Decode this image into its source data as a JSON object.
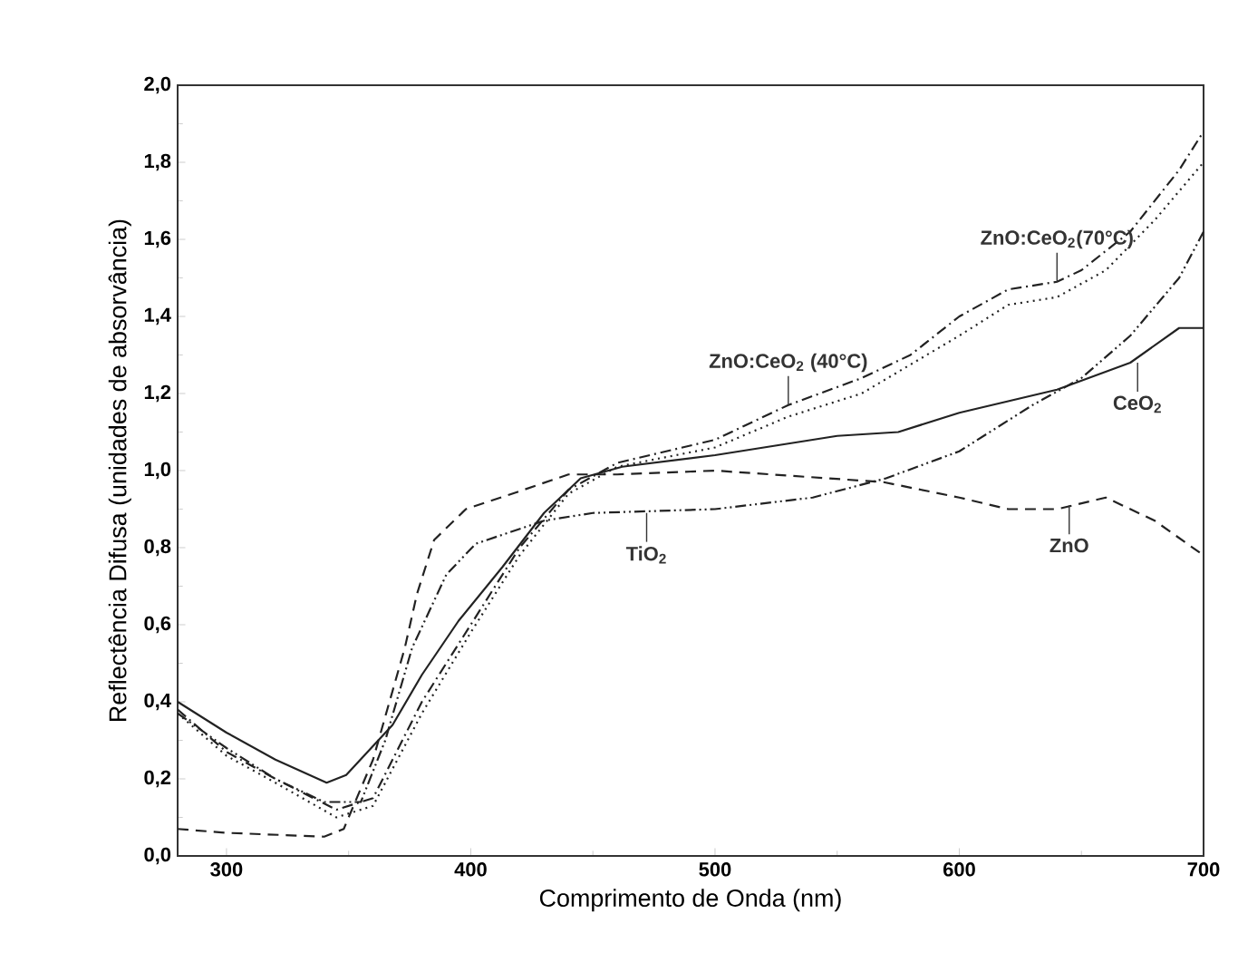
{
  "chart_data": {
    "type": "line",
    "xlabel": "Comprimento de Onda (nm)",
    "ylabel": "Reflectência Difusa (unidades de absorvância)",
    "xlim": [
      280,
      700
    ],
    "ylim": [
      0,
      2
    ],
    "xticks": [
      300,
      400,
      500,
      600,
      700
    ],
    "yticks": [
      {
        "value": 0,
        "label": "0,0"
      },
      {
        "value": 0.2,
        "label": "0,2"
      },
      {
        "value": 0.4,
        "label": "0,4"
      },
      {
        "value": 0.6,
        "label": "0,6"
      },
      {
        "value": 0.8,
        "label": "0,8"
      },
      {
        "value": 1.0,
        "label": "1,0"
      },
      {
        "value": 1.2,
        "label": "1,2"
      },
      {
        "value": 1.4,
        "label": "1,4"
      },
      {
        "value": 1.6,
        "label": "1,6"
      },
      {
        "value": 1.8,
        "label": "1,8"
      },
      {
        "value": 2.0,
        "label": "2,0"
      }
    ],
    "grid": false,
    "marker": "none",
    "series": [
      {
        "color": "#222222",
        "line_style": "solid",
        "x": [
          280,
          300,
          320,
          341,
          349,
          368,
          380,
          395,
          413,
          430,
          445,
          462,
          500,
          550,
          575,
          600,
          640,
          670,
          690,
          700
        ],
        "values": [
          0.4,
          0.32,
          0.25,
          0.19,
          0.21,
          0.34,
          0.47,
          0.61,
          0.75,
          0.89,
          0.98,
          1.01,
          1.04,
          1.09,
          1.1,
          1.15,
          1.21,
          1.28,
          1.37,
          1.37
        ]
      },
      {
        "color": "#222222",
        "line_style": "dashed",
        "x": [
          280,
          300,
          340,
          348,
          360,
          373,
          378,
          385,
          398,
          417,
          440,
          460,
          500,
          569,
          600,
          620,
          640,
          660,
          680,
          700
        ],
        "values": [
          0.07,
          0.06,
          0.05,
          0.07,
          0.25,
          0.54,
          0.68,
          0.82,
          0.9,
          0.94,
          0.99,
          0.99,
          1.0,
          0.97,
          0.93,
          0.9,
          0.9,
          0.93,
          0.87,
          0.78
        ]
      },
      {
        "color": "#222222",
        "line_style": "dashdotdotted",
        "x": [
          280,
          300,
          320,
          340,
          355,
          365,
          376,
          390,
          402,
          430,
          450,
          500,
          540,
          570,
          600,
          630,
          650,
          670,
          690,
          700
        ],
        "values": [
          0.37,
          0.28,
          0.2,
          0.14,
          0.14,
          0.3,
          0.54,
          0.73,
          0.81,
          0.87,
          0.89,
          0.9,
          0.93,
          0.98,
          1.05,
          1.17,
          1.24,
          1.35,
          1.5,
          1.62
        ]
      },
      {
        "color": "#222222",
        "line_style": "dashdotted",
        "x": [
          280,
          300,
          320,
          345,
          360,
          380,
          400,
          420,
          440,
          460,
          500,
          530,
          560,
          580,
          600,
          620,
          640,
          650,
          670,
          690,
          700
        ],
        "values": [
          0.38,
          0.27,
          0.2,
          0.12,
          0.15,
          0.4,
          0.6,
          0.8,
          0.95,
          1.02,
          1.08,
          1.17,
          1.24,
          1.3,
          1.4,
          1.47,
          1.49,
          1.52,
          1.62,
          1.78,
          1.88
        ]
      },
      {
        "color": "#222222",
        "line_style": "dotted",
        "x": [
          280,
          300,
          320,
          345,
          360,
          380,
          400,
          420,
          440,
          460,
          500,
          530,
          560,
          600,
          620,
          640,
          660,
          680,
          700
        ],
        "values": [
          0.37,
          0.26,
          0.19,
          0.1,
          0.13,
          0.37,
          0.58,
          0.78,
          0.94,
          1.01,
          1.06,
          1.14,
          1.2,
          1.35,
          1.43,
          1.45,
          1.52,
          1.65,
          1.8
        ]
      }
    ],
    "annotations": [
      {
        "text": "ZnO:CeO$_{2}$(70°C)",
        "x": 640,
        "y": 1.49
      },
      {
        "text": "ZnO:CeO$_{2}$ (40°C)",
        "x": 530,
        "y": 1.17
      },
      {
        "text": "CeO$_{2}$",
        "x": 673,
        "y": 1.28
      },
      {
        "text": "TiO$_{2}$",
        "x": 472,
        "y": 0.89
      },
      {
        "text": "ZnO",
        "x": 645,
        "y": 0.91
      }
    ]
  }
}
